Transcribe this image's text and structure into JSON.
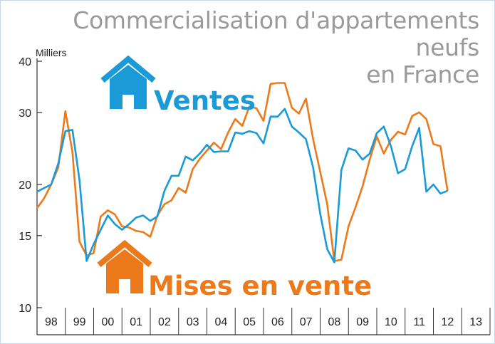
{
  "chart_data": {
    "type": "line",
    "title": "Commercialisation d'appartements neufs en France",
    "title_lines": [
      "Commercialisation d'appartements neufs",
      "en France"
    ],
    "ylabel": "Milliers",
    "yscale": "log",
    "ylim": [
      10,
      40
    ],
    "yticks": [
      10,
      15,
      20,
      30,
      40
    ],
    "x_tick_labels": [
      "98",
      "99",
      "00",
      "01",
      "02",
      "03",
      "04",
      "05",
      "06",
      "07",
      "08",
      "09",
      "10",
      "11",
      "12",
      "13"
    ],
    "xlim": [
      1998.0,
      2014.0
    ],
    "grid": false,
    "colors": {
      "ventes": "#1a9ad6",
      "mises": "#ec7a1b",
      "axis": "#333333",
      "frame": "#c9d8e6"
    },
    "series": [
      {
        "name": "Ventes",
        "key": "ventes",
        "icon": "house-icon",
        "x": [
          1998.0,
          1998.25,
          1998.5,
          1998.75,
          1999.0,
          1999.25,
          1999.5,
          1999.75,
          2000.0,
          2000.25,
          2000.5,
          2000.75,
          2001.0,
          2001.25,
          2001.5,
          2001.75,
          2002.0,
          2002.25,
          2002.5,
          2002.75,
          2003.0,
          2003.25,
          2003.5,
          2003.75,
          2004.0,
          2004.25,
          2004.5,
          2004.75,
          2005.0,
          2005.25,
          2005.5,
          2005.75,
          2006.0,
          2006.25,
          2006.5,
          2006.75,
          2007.0,
          2007.25,
          2007.5,
          2007.75,
          2008.0,
          2008.25,
          2008.5,
          2008.75,
          2009.0,
          2009.25,
          2009.5,
          2009.75,
          2010.0,
          2010.25,
          2010.5,
          2010.75,
          2011.0,
          2011.25,
          2011.5,
          2011.75,
          2012.0,
          2012.25,
          2012.5
        ],
        "values": [
          19.2,
          19.6,
          20.0,
          22.5,
          27.0,
          27.2,
          20.5,
          13.0,
          14.3,
          15.5,
          16.8,
          16.0,
          15.5,
          16.0,
          16.6,
          16.8,
          16.3,
          16.7,
          19.3,
          21.0,
          21.0,
          23.4,
          22.9,
          23.8,
          25.0,
          24.0,
          24.1,
          24.1,
          26.8,
          26.6,
          27.0,
          26.7,
          25.2,
          29.3,
          29.3,
          30.6,
          27.7,
          26.8,
          25.8,
          22.0,
          17.0,
          13.9,
          12.9,
          21.7,
          24.5,
          24.2,
          23.0,
          23.8,
          26.7,
          27.7,
          24.8,
          21.3,
          21.8,
          24.8,
          27.5,
          19.2,
          20.0,
          19.0,
          19.3
        ]
      },
      {
        "name": "Mises en vente",
        "key": "mises",
        "icon": "house-icon",
        "x": [
          1998.0,
          1998.25,
          1998.5,
          1998.75,
          1999.0,
          1999.25,
          1999.5,
          1999.75,
          2000.0,
          2000.25,
          2000.5,
          2000.75,
          2001.0,
          2001.25,
          2001.5,
          2001.75,
          2002.0,
          2002.25,
          2002.5,
          2002.75,
          2003.0,
          2003.25,
          2003.5,
          2003.75,
          2004.0,
          2004.25,
          2004.5,
          2004.75,
          2005.0,
          2005.25,
          2005.5,
          2005.75,
          2006.0,
          2006.25,
          2006.5,
          2006.75,
          2007.0,
          2007.25,
          2007.5,
          2007.75,
          2008.0,
          2008.25,
          2008.5,
          2008.75,
          2009.0,
          2009.25,
          2009.5,
          2009.75,
          2010.0,
          2010.25,
          2010.5,
          2010.75,
          2011.0,
          2011.25,
          2011.5,
          2011.75,
          2012.0,
          2012.25,
          2012.5
        ],
        "values": [
          17.5,
          18.5,
          20.0,
          22.0,
          30.2,
          24.0,
          14.5,
          13.4,
          13.6,
          16.7,
          17.3,
          16.9,
          15.8,
          15.7,
          15.4,
          15.3,
          14.9,
          16.8,
          17.9,
          18.3,
          19.6,
          19.1,
          21.8,
          23.1,
          24.2,
          25.3,
          24.4,
          26.8,
          28.9,
          27.8,
          31.0,
          30.7,
          28.6,
          35.2,
          35.4,
          35.4,
          30.8,
          29.8,
          32.4,
          25.8,
          21.5,
          17.9,
          13.0,
          13.1,
          15.8,
          17.6,
          19.8,
          23.0,
          26.2,
          23.8,
          25.7,
          26.9,
          26.5,
          29.4,
          30.0,
          28.9,
          25.1,
          24.8,
          19.3
        ]
      }
    ],
    "annotations": [
      {
        "text": "Ventes",
        "series": "ventes"
      },
      {
        "text": "Mises en vente",
        "series": "mises"
      }
    ]
  }
}
